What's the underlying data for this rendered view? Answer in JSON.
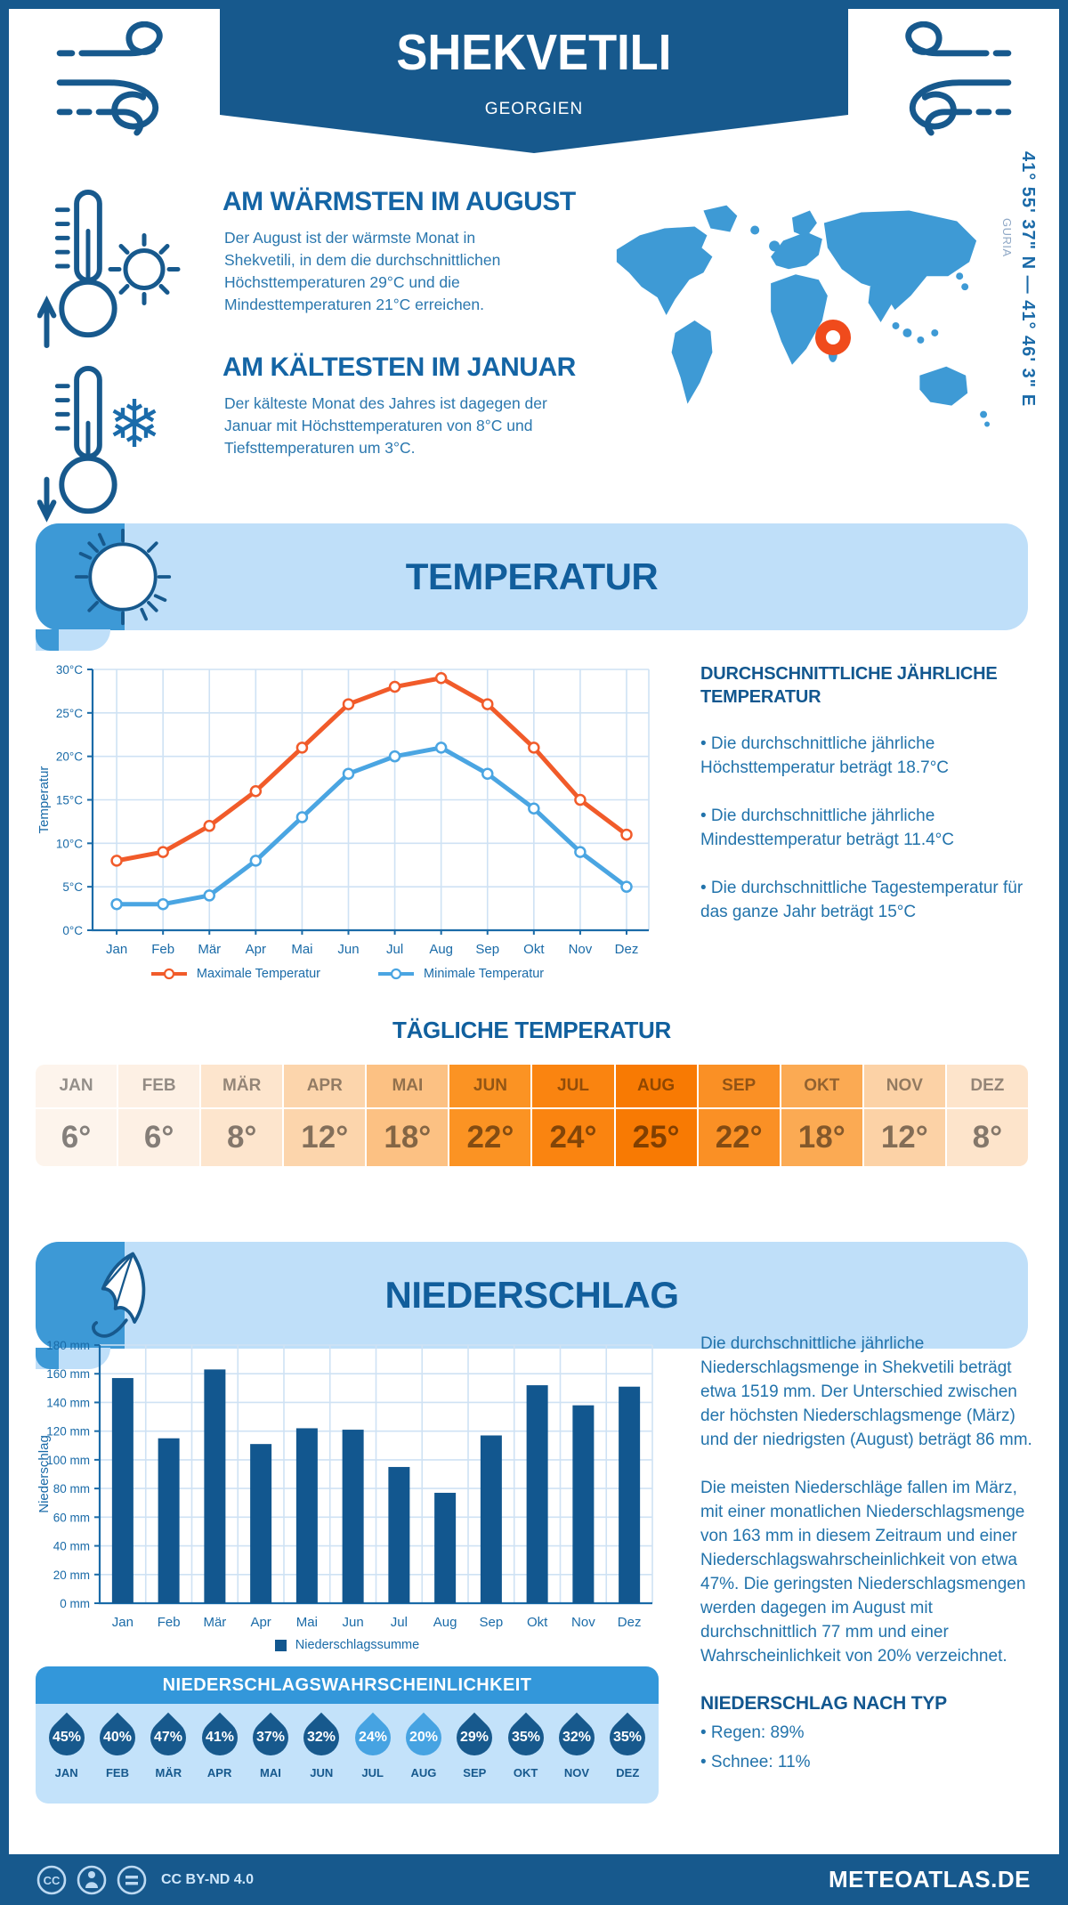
{
  "header": {
    "title": "SHEKVETILI",
    "subtitle": "GEORGIEN"
  },
  "location": {
    "region_label": "GURIA",
    "coordinates": "41° 55' 37\" N — 41° 46' 3\" E"
  },
  "warmest": {
    "heading": "AM WÄRMSTEN IM AUGUST",
    "body": "Der August ist der wärmste Monat in Shekvetili, in dem die durchschnittlichen Höchsttemperaturen 29°C und die Mindesttemperaturen 21°C erreichen."
  },
  "coldest": {
    "heading": "AM KÄLTESTEN IM JANUAR",
    "body": "Der kälteste Monat des Jahres ist dagegen der Januar mit Höchsttemperaturen von 8°C und Tiefsttemperaturen um 3°C."
  },
  "temperature": {
    "banner": "TEMPERATUR",
    "annual_heading": "DURCHSCHNITTLICHE JÄHRLICHE TEMPERATUR",
    "bullets": [
      "• Die durchschnittliche jährliche Höchsttemperatur beträgt 18.7°C",
      "• Die durchschnittliche jährliche Mindesttemperatur beträgt 11.4°C",
      "• Die durchschnittliche Tagestemperatur für das ganze Jahr beträgt 15°C"
    ],
    "daily": {
      "title": "TÄGLICHE TEMPERATUR",
      "months": [
        "JAN",
        "FEB",
        "MÄR",
        "APR",
        "MAI",
        "JUN",
        "JUL",
        "AUG",
        "SEP",
        "OKT",
        "NOV",
        "DEZ"
      ],
      "values": [
        "6°",
        "6°",
        "8°",
        "12°",
        "18°",
        "22°",
        "24°",
        "25°",
        "22°",
        "18°",
        "12°",
        "8°"
      ],
      "cell_colors": [
        "#fdf4ec",
        "#fdf0e4",
        "#fde5cd",
        "#fcd5ac",
        "#fcc183",
        "#fb9323",
        "#fa8410",
        "#f87a03",
        "#fa9025",
        "#fbaa53",
        "#fcd2a6",
        "#fde4cb"
      ]
    }
  },
  "precipitation": {
    "banner": "NIEDERSCHLAG",
    "paragraphs": [
      "Die durchschnittliche jährliche Niederschlagsmenge in Shekvetili beträgt etwa 1519 mm. Der Unterschied zwischen der höchsten Niederschlagsmenge (März) und der niedrigsten (August) beträgt 86 mm.",
      "Die meisten Niederschläge fallen im März, mit einer monatlichen Niederschlagsmenge von 163 mm in diesem Zeitraum und einer Niederschlagswahrscheinlichkeit von etwa 47%. Die geringsten Niederschlagsmengen werden dagegen im August mit durchschnittlich 77 mm und einer Wahrscheinlichkeit von 20% verzeichnet."
    ],
    "by_type_heading": "NIEDERSCHLAG NACH TYP",
    "by_type": [
      "• Regen: 89%",
      "• Schnee: 11%"
    ],
    "probability": {
      "title": "NIEDERSCHLAGSWAHRSCHEINLICHKEIT",
      "months": [
        "JAN",
        "FEB",
        "MÄR",
        "APR",
        "MAI",
        "JUN",
        "JUL",
        "AUG",
        "SEP",
        "OKT",
        "NOV",
        "DEZ"
      ],
      "values": [
        "45%",
        "40%",
        "47%",
        "41%",
        "37%",
        "32%",
        "24%",
        "20%",
        "29%",
        "35%",
        "32%",
        "35%"
      ],
      "drop_colors": [
        "#17598d",
        "#17598d",
        "#17598d",
        "#17598d",
        "#17598d",
        "#17598d",
        "#46a3e2",
        "#46a3e2",
        "#17598d",
        "#17598d",
        "#17598d",
        "#17598d"
      ]
    }
  },
  "footer": {
    "license": "CC BY-ND 4.0",
    "site": "METEOATLAS.DE"
  },
  "colors": {
    "primary_dark_blue": "#17598d",
    "accent_blue": "#3d99d6",
    "light_blue_bg": "#bfdff9",
    "map_blue": "#3e9ad5",
    "marker_orange": "#f04b1c",
    "max_line_orange": "#f15b2a",
    "min_line_blue": "#4aa5e2",
    "grid": "#cfe2f4",
    "axis": "#1a6ba8"
  },
  "chart_data": [
    {
      "type": "line",
      "title": "",
      "categories": [
        "Jan",
        "Feb",
        "Mär",
        "Apr",
        "Mai",
        "Jun",
        "Jul",
        "Aug",
        "Sep",
        "Okt",
        "Nov",
        "Dez"
      ],
      "series": [
        {
          "name": "Maximale Temperatur",
          "color": "#f15b2a",
          "values": [
            8,
            9,
            12,
            16,
            21,
            26,
            28,
            29,
            26,
            21,
            15,
            11
          ]
        },
        {
          "name": "Minimale Temperatur",
          "color": "#4aa5e2",
          "values": [
            3,
            3,
            4,
            8,
            13,
            18,
            20,
            21,
            18,
            14,
            9,
            5
          ]
        }
      ],
      "xlabel": "",
      "ylabel": "Temperatur",
      "ylim": [
        0,
        30
      ],
      "ytick_step": 5,
      "ytick_suffix": "°C",
      "grid": true,
      "legend_position": "bottom"
    },
    {
      "type": "bar",
      "title": "",
      "categories": [
        "Jan",
        "Feb",
        "Mär",
        "Apr",
        "Mai",
        "Jun",
        "Jul",
        "Aug",
        "Sep",
        "Okt",
        "Nov",
        "Dez"
      ],
      "series": [
        {
          "name": "Niederschlagssumme",
          "color": "#12578f",
          "values": [
            157,
            115,
            163,
            111,
            122,
            121,
            95,
            77,
            117,
            152,
            138,
            151
          ]
        }
      ],
      "xlabel": "",
      "ylabel": "Niederschlag",
      "ylim": [
        0,
        180
      ],
      "ytick_step": 20,
      "ytick_suffix": " mm",
      "grid": true,
      "legend_position": "bottom"
    }
  ]
}
